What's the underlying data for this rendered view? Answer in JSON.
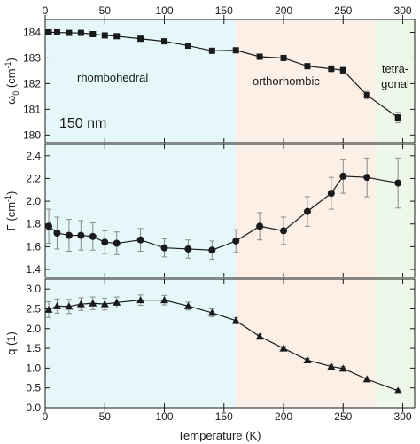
{
  "chart_data": {
    "type": "line",
    "x_axis": {
      "label": "Temperature (K)",
      "range": [
        0,
        310
      ],
      "ticks": [
        0,
        50,
        100,
        150,
        200,
        250,
        300
      ],
      "ticks_on_top": true
    },
    "phases": [
      {
        "name": "rhombohedral",
        "range": [
          0,
          160
        ],
        "color": "#e6f7fa"
      },
      {
        "name": "orthorhombic",
        "range": [
          160,
          277
        ],
        "color": "#fbefe6"
      },
      {
        "name": "tetra-gonal",
        "lines": [
          "tetra-",
          "gonal"
        ],
        "range": [
          277,
          310
        ],
        "color": "#eef8e8"
      }
    ],
    "annotations": [
      "150 nm"
    ],
    "panels": [
      {
        "id": "omega",
        "ylabel_main": "ω",
        "ylabel_sub": "0",
        "ylabel_rest": " (cm",
        "ylabel_sup": "-1",
        "ylabel_close": ")",
        "ylim": [
          179.7,
          184.5
        ],
        "yticks": [
          "180",
          "181",
          "182",
          "183",
          "184"
        ],
        "ytick_values": [
          180,
          181,
          182,
          183,
          184
        ],
        "marker": "square",
        "series": [
          {
            "x": [
              3,
              10,
              20,
              30,
              40,
              50,
              60,
              80,
              100,
              120,
              140,
              160,
              180,
              200,
              220,
              240,
              250,
              270,
              296
            ],
            "y": [
              184.0,
              184.0,
              183.98,
              183.98,
              183.93,
              183.88,
              183.85,
              183.75,
              183.65,
              183.48,
              183.28,
              183.3,
              183.05,
              183.0,
              182.68,
              182.58,
              182.52,
              181.55,
              180.68
            ],
            "err": [
              0.08,
              0.08,
              0.08,
              0.08,
              0.08,
              0.08,
              0.08,
              0.08,
              0.08,
              0.08,
              0.08,
              0.08,
              0.08,
              0.08,
              0.1,
              0.12,
              0.12,
              0.15,
              0.2
            ]
          }
        ]
      },
      {
        "id": "gamma",
        "ylabel_main": "Γ (cm",
        "ylabel_sup": "-1",
        "ylabel_close": ")",
        "ylim": [
          1.33,
          2.5
        ],
        "yticks": [
          "1.4",
          "1.6",
          "1.8",
          "2.0",
          "2.2",
          "2.4"
        ],
        "ytick_values": [
          1.4,
          1.6,
          1.8,
          2.0,
          2.2,
          2.4
        ],
        "marker": "circle",
        "series": [
          {
            "x": [
              3,
              10,
              20,
              30,
              40,
              50,
              60,
              80,
              100,
              120,
              140,
              160,
              180,
              200,
              220,
              240,
              250,
              270,
              296
            ],
            "y": [
              1.78,
              1.72,
              1.7,
              1.7,
              1.69,
              1.64,
              1.63,
              1.66,
              1.59,
              1.58,
              1.57,
              1.65,
              1.78,
              1.74,
              1.91,
              2.07,
              2.22,
              2.21,
              2.16
            ],
            "err": [
              0.15,
              0.14,
              0.14,
              0.13,
              0.12,
              0.1,
              0.1,
              0.1,
              0.08,
              0.08,
              0.08,
              0.1,
              0.12,
              0.12,
              0.13,
              0.14,
              0.15,
              0.17,
              0.22
            ]
          }
        ]
      },
      {
        "id": "q",
        "ylabel_main": "q (1)",
        "ylim": [
          0,
          3.25
        ],
        "yticks": [
          "0.0",
          "0.5",
          "1.0",
          "1.5",
          "2.0",
          "2.5",
          "3.0"
        ],
        "ytick_values": [
          0,
          0.5,
          1.0,
          1.5,
          2.0,
          2.5,
          3.0
        ],
        "marker": "triangle",
        "series": [
          {
            "x": [
              3,
              10,
              20,
              30,
              40,
              50,
              60,
              80,
              100,
              120,
              140,
              160,
              180,
              200,
              220,
              240,
              250,
              270,
              296
            ],
            "y": [
              2.48,
              2.57,
              2.56,
              2.62,
              2.64,
              2.62,
              2.66,
              2.72,
              2.72,
              2.57,
              2.4,
              2.2,
              1.8,
              1.5,
              1.2,
              1.04,
              0.99,
              0.72,
              0.43
            ],
            "err": [
              0.2,
              0.18,
              0.18,
              0.16,
              0.16,
              0.15,
              0.14,
              0.13,
              0.12,
              0.1,
              0.1,
              0.08,
              0.06,
              0.05,
              0.05,
              0.05,
              0.05,
              0.04,
              0.04
            ]
          }
        ]
      }
    ],
    "line_color": "#1a1a1a",
    "errorbar_color": "#8a8a8a",
    "grid": false
  }
}
